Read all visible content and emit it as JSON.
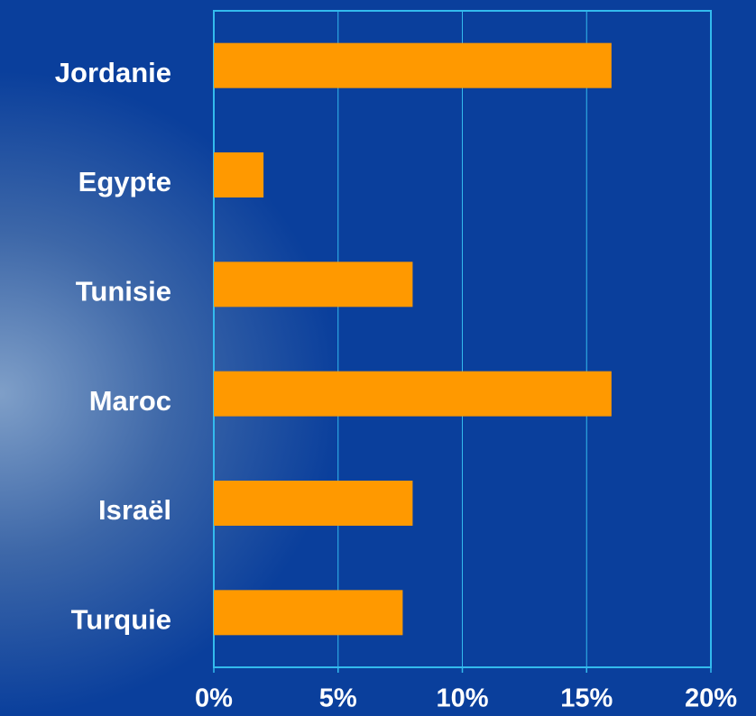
{
  "chart_data": {
    "type": "hbar",
    "categories": [
      "Jordanie",
      "Egypte",
      "Tunisie",
      "Maroc",
      "Israël",
      "Turquie"
    ],
    "values": [
      16,
      2,
      8,
      16,
      8,
      7.6
    ],
    "color": "#ff9900",
    "xlim": [
      0,
      20
    ],
    "xticks": [
      {
        "value": 0,
        "label": "0%"
      },
      {
        "value": 5,
        "label": "5%"
      },
      {
        "value": 10,
        "label": "10%"
      },
      {
        "value": 15,
        "label": "15%"
      },
      {
        "value": 20,
        "label": "20%"
      }
    ],
    "grid": true
  }
}
